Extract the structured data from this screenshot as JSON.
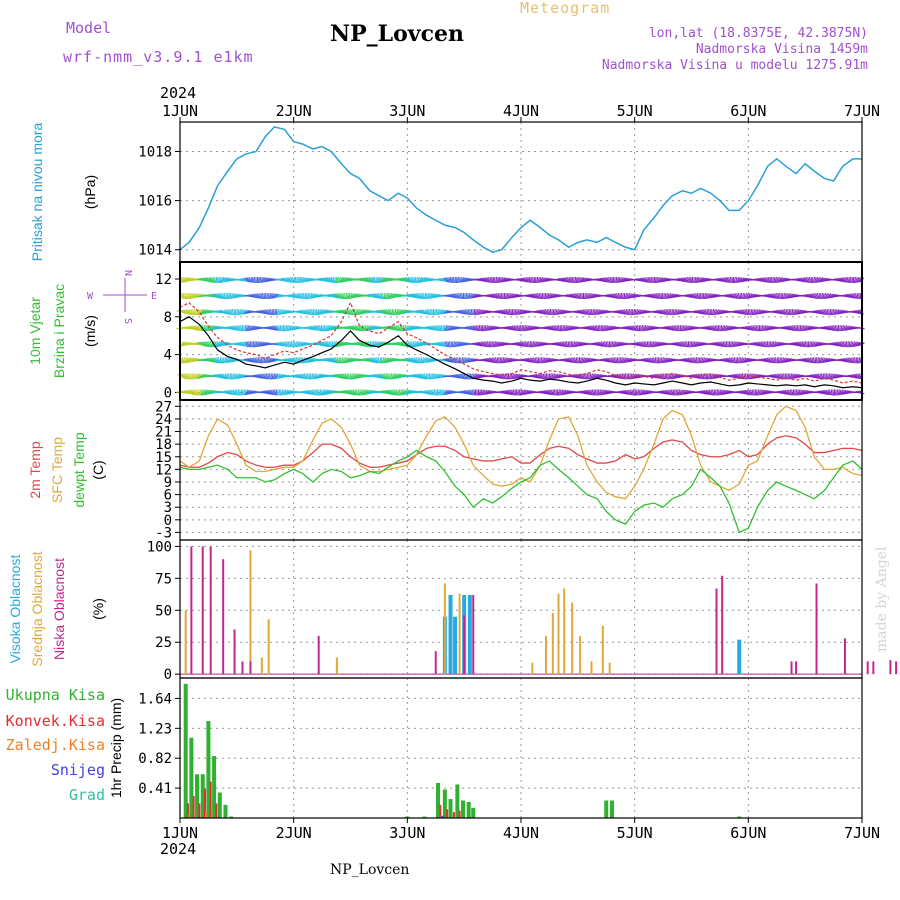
{
  "header": {
    "model_label": "Model",
    "model_value": "wrf-nmm_v3.9.1 e1km",
    "station": "NP_Lovcen",
    "product": "Meteogram",
    "lonlat": "lon,lat (18.8375E, 42.3875N)",
    "elevation": "Nadmorska Visina 1459m",
    "model_elevation": "Nadmorska Visina u modelu 1275.91m",
    "year_top": "2024",
    "year_bottom": "2024",
    "footer_station": "NP_Lovcen",
    "watermark": "made by Angel"
  },
  "x_axis": {
    "ticks": [
      "1JUN",
      "2JUN",
      "3JUN",
      "4JUN",
      "5JUN",
      "6JUN",
      "7JUN"
    ],
    "range_days": [
      0,
      6
    ]
  },
  "colors": {
    "pressure": "#2a9fd8",
    "wind_speed": "#000000",
    "gust": "#e03030",
    "t2m": "#e04848",
    "tsfc": "#e0a838",
    "dewpt": "#30c030",
    "cloud_high": "#2aa8e0",
    "cloud_mid": "#e0a838",
    "cloud_low": "#c02890",
    "precip_total": "#30b030",
    "precip_conv": "#e03030",
    "precip_frz": "#f08020",
    "precip_snow": "#4040e0",
    "precip_grad": "#30c0a0"
  },
  "panels": {
    "pressure": {
      "labels": [
        "Pritisak na nivou mora",
        "(hPa)"
      ],
      "yticks": [
        1014,
        1016,
        1018
      ],
      "ylim": [
        1013.5,
        1019.2
      ]
    },
    "wind": {
      "labels": [
        "10m Vjetar",
        "Brzina i Pravac",
        "(m/s)"
      ],
      "compass": {
        "n": "N",
        "s": "S",
        "w": "W",
        "e": "E"
      },
      "yticks": [
        0,
        4,
        8,
        12
      ],
      "ylim": [
        -0.8,
        13.8
      ]
    },
    "temp": {
      "labels": [
        "2m Temp",
        "SFC Temp",
        "dewpt Temp",
        "(C)"
      ],
      "yticks": [
        -3,
        0,
        3,
        6,
        9,
        12,
        15,
        18,
        21,
        24,
        27
      ],
      "ylim": [
        -4.8,
        28.5
      ]
    },
    "cloud": {
      "labels": [
        "Visoka Oblacnost",
        "Srednja Oblacnost",
        "Niska Oblacnost",
        "(%)"
      ],
      "yticks": [
        0,
        25,
        50,
        75,
        100
      ],
      "ylim": [
        -3,
        105
      ]
    },
    "precip": {
      "labels": [
        "Ukupna Kisa",
        "Konvek.Kisa",
        "Zaledj.Kisa",
        "Snijeg",
        "Grad",
        "1hr Precip (mm)"
      ],
      "yticks": [
        0.41,
        0.82,
        1.23,
        1.64
      ],
      "ylim": [
        0,
        1.92
      ]
    }
  },
  "chart_data": [
    {
      "type": "line",
      "name": "pressure",
      "x": [
        0,
        0.08,
        0.17,
        0.25,
        0.33,
        0.42,
        0.5,
        0.58,
        0.67,
        0.75,
        0.83,
        0.92,
        1.0,
        1.08,
        1.17,
        1.25,
        1.33,
        1.42,
        1.5,
        1.58,
        1.67,
        1.75,
        1.83,
        1.92,
        2.0,
        2.08,
        2.17,
        2.25,
        2.33,
        2.42,
        2.5,
        2.58,
        2.67,
        2.75,
        2.83,
        2.92,
        3.0,
        3.08,
        3.17,
        3.25,
        3.33,
        3.42,
        3.5,
        3.58,
        3.67,
        3.75,
        3.83,
        3.92,
        4.0,
        4.08,
        4.17,
        4.25,
        4.33,
        4.42,
        4.5,
        4.58,
        4.67,
        4.75,
        4.83,
        4.92,
        5.0,
        5.08,
        5.17,
        5.25,
        5.33,
        5.42,
        5.5,
        5.58,
        5.67,
        5.75,
        5.83,
        5.92,
        6.0
      ],
      "values": [
        1014.0,
        1014.3,
        1014.9,
        1015.7,
        1016.6,
        1017.2,
        1017.7,
        1017.9,
        1018.0,
        1018.6,
        1019.0,
        1018.9,
        1018.4,
        1018.3,
        1018.1,
        1018.2,
        1018.0,
        1017.5,
        1017.1,
        1016.9,
        1016.4,
        1016.2,
        1016.0,
        1016.3,
        1016.1,
        1015.7,
        1015.4,
        1015.2,
        1015.0,
        1014.9,
        1014.7,
        1014.4,
        1014.1,
        1013.9,
        1014.0,
        1014.5,
        1014.9,
        1015.2,
        1014.9,
        1014.6,
        1014.4,
        1014.1,
        1014.3,
        1014.4,
        1014.3,
        1014.5,
        1014.3,
        1014.1,
        1014.0,
        1014.8,
        1015.3,
        1015.8,
        1016.2,
        1016.4,
        1016.3,
        1016.5,
        1016.3,
        1016.0,
        1015.6,
        1015.6,
        1016.0,
        1016.6,
        1017.4,
        1017.7,
        1017.4,
        1017.1,
        1017.5,
        1017.2,
        1016.9,
        1016.8,
        1017.4,
        1017.7,
        1017.7
      ]
    },
    {
      "type": "line",
      "name": "wind",
      "x": [
        0,
        0.08,
        0.17,
        0.25,
        0.33,
        0.42,
        0.5,
        0.58,
        0.67,
        0.75,
        0.83,
        0.92,
        1.0,
        1.08,
        1.17,
        1.25,
        1.33,
        1.42,
        1.5,
        1.58,
        1.67,
        1.75,
        1.83,
        1.92,
        2.0,
        2.08,
        2.17,
        2.25,
        2.33,
        2.42,
        2.5,
        2.58,
        2.67,
        2.75,
        2.83,
        2.92,
        3.0,
        3.08,
        3.17,
        3.25,
        3.33,
        3.42,
        3.5,
        3.58,
        3.67,
        3.75,
        3.83,
        3.92,
        4.0,
        4.08,
        4.17,
        4.25,
        4.33,
        4.42,
        4.5,
        4.58,
        4.67,
        4.75,
        4.83,
        4.92,
        5.0,
        5.08,
        5.17,
        5.25,
        5.33,
        5.42,
        5.5,
        5.58,
        5.67,
        5.75,
        5.83,
        5.92,
        6.0
      ],
      "series": [
        {
          "values": [
            7.5,
            8.0,
            7.2,
            6.0,
            4.5,
            3.8,
            3.5,
            3.0,
            2.8,
            2.6,
            2.9,
            3.2,
            3.0,
            3.4,
            3.8,
            4.2,
            4.6,
            5.5,
            6.5,
            5.5,
            5.0,
            4.8,
            5.3,
            6.0,
            5.0,
            4.5,
            4.0,
            3.5,
            3.0,
            2.5,
            2.0,
            1.5,
            1.3,
            1.2,
            1.0,
            1.2,
            1.5,
            1.3,
            1.2,
            1.4,
            1.3,
            1.1,
            1.0,
            1.2,
            1.5,
            1.3,
            1.0,
            0.8,
            1.0,
            0.9,
            0.8,
            1.0,
            1.2,
            1.0,
            0.8,
            1.0,
            1.1,
            0.9,
            0.7,
            0.8,
            1.0,
            0.9,
            0.8,
            0.7,
            0.8,
            0.7,
            0.8,
            0.6,
            0.8,
            0.7,
            0.5,
            0.6,
            0.5
          ]
        },
        {
          "values": [
            9.0,
            9.5,
            8.5,
            7.0,
            5.8,
            5.0,
            4.5,
            4.2,
            4.0,
            3.6,
            4.0,
            4.4,
            4.2,
            4.6,
            5.0,
            5.5,
            6.0,
            7.5,
            9.5,
            7.0,
            6.5,
            6.2,
            6.8,
            7.5,
            6.2,
            5.8,
            5.2,
            4.6,
            4.0,
            3.5,
            3.0,
            2.5,
            2.2,
            2.0,
            1.8,
            2.0,
            2.4,
            2.2,
            2.0,
            2.3,
            2.2,
            1.9,
            1.8,
            2.0,
            2.4,
            2.2,
            1.8,
            1.5,
            1.8,
            1.7,
            1.5,
            1.8,
            2.0,
            1.8,
            1.5,
            1.8,
            1.9,
            1.6,
            1.3,
            1.5,
            1.8,
            1.6,
            1.5,
            1.3,
            1.5,
            1.3,
            1.5,
            1.2,
            1.5,
            1.3,
            1.0,
            1.2,
            1.0
          ]
        }
      ]
    },
    {
      "type": "line",
      "name": "temperature",
      "x": [
        0,
        0.08,
        0.17,
        0.25,
        0.33,
        0.42,
        0.5,
        0.58,
        0.67,
        0.75,
        0.83,
        0.92,
        1.0,
        1.08,
        1.17,
        1.25,
        1.33,
        1.42,
        1.5,
        1.58,
        1.67,
        1.75,
        1.83,
        1.92,
        2.0,
        2.08,
        2.17,
        2.25,
        2.33,
        2.42,
        2.5,
        2.58,
        2.67,
        2.75,
        2.83,
        2.92,
        3.0,
        3.08,
        3.17,
        3.25,
        3.33,
        3.42,
        3.5,
        3.58,
        3.67,
        3.75,
        3.83,
        3.92,
        4.0,
        4.08,
        4.17,
        4.25,
        4.33,
        4.42,
        4.5,
        4.58,
        4.67,
        4.75,
        4.83,
        4.92,
        5.0,
        5.08,
        5.17,
        5.25,
        5.33,
        5.42,
        5.5,
        5.58,
        5.67,
        5.75,
        5.83,
        5.92,
        6.0
      ],
      "series": [
        {
          "values": [
            13,
            12.5,
            12.5,
            13.5,
            15,
            16,
            15.5,
            14,
            13,
            12.5,
            12.5,
            13,
            13,
            14,
            16,
            18,
            18,
            17,
            15,
            13.5,
            12.5,
            12.5,
            13,
            13.5,
            14,
            15.5,
            17,
            17.5,
            17.5,
            16.5,
            15,
            14.5,
            14,
            14,
            14.5,
            15,
            13.5,
            13.5,
            15.5,
            17,
            17.5,
            17,
            15.5,
            14.5,
            13.5,
            13.5,
            14,
            15.5,
            14.5,
            15,
            17,
            18.5,
            19,
            18.5,
            16.5,
            15.5,
            15,
            15,
            15.5,
            16.5,
            15,
            15.5,
            18,
            19.5,
            20,
            19.5,
            18,
            16,
            16,
            16.5,
            17,
            17,
            16.5
          ]
        },
        {
          "values": [
            14,
            12.5,
            14,
            20,
            24,
            22.5,
            18,
            13,
            11.5,
            11.5,
            12,
            12.5,
            12.5,
            14,
            19,
            23,
            24,
            22,
            18,
            13,
            11.5,
            11.5,
            12,
            12.5,
            13,
            15.5,
            20,
            23.5,
            24.5,
            22,
            18,
            13,
            10.5,
            8.5,
            8,
            8.5,
            10,
            9,
            13,
            19,
            24,
            24.5,
            20,
            13,
            9,
            6.5,
            5.5,
            5,
            8,
            12,
            18,
            24,
            26,
            25,
            20,
            13,
            9,
            8,
            7,
            8.5,
            13,
            14,
            20,
            25,
            27,
            26,
            22,
            15,
            12,
            12,
            12.5,
            11,
            10.5
          ]
        },
        {
          "values": [
            12.5,
            12,
            12,
            12.5,
            13,
            12,
            10,
            10,
            10,
            9,
            9.5,
            11,
            12,
            11,
            9,
            11,
            12,
            11.5,
            10,
            10.5,
            11.5,
            11,
            12.5,
            14,
            15,
            16.5,
            15,
            14,
            11.5,
            8,
            6,
            3,
            5,
            4,
            5.5,
            7.5,
            9,
            10,
            13,
            14,
            12,
            10,
            8,
            6,
            5,
            2,
            0,
            -1,
            2,
            3.5,
            4,
            3,
            5,
            6,
            8,
            12,
            10,
            8,
            4,
            -3,
            -2,
            3,
            7,
            9,
            8,
            7,
            6,
            5,
            7,
            10,
            13,
            14,
            12
          ]
        }
      ]
    },
    {
      "type": "bar",
      "name": "cloud cover",
      "series": [
        {
          "x": [
            2.33,
            2.38,
            2.42,
            2.5,
            2.55,
            4.92
          ],
          "values": [
            45,
            62,
            45,
            62,
            62,
            27
          ]
        },
        {
          "x": [
            0.05,
            0.62,
            0.72,
            0.78,
            1.38,
            2.33,
            2.46,
            3.1,
            3.22,
            3.28,
            3.33,
            3.38,
            3.45,
            3.52,
            3.62,
            3.72,
            3.78
          ],
          "values": [
            50,
            97,
            13,
            43,
            13,
            71,
            63,
            9,
            30,
            48,
            63,
            67,
            56,
            30,
            10,
            38,
            9
          ]
        },
        {
          "x": [
            0.1,
            0.2,
            0.27,
            0.38,
            0.48,
            0.55,
            0.62,
            1.22,
            2.25,
            2.5,
            2.58,
            4.72,
            4.77,
            5.38,
            5.42,
            5.6,
            5.85,
            6.05,
            6.1,
            6.25,
            6.3
          ],
          "values": [
            100,
            100,
            100,
            90,
            35,
            10,
            10,
            30,
            18,
            46,
            62,
            67,
            77,
            10,
            10,
            71,
            28,
            10,
            10,
            11,
            10
          ]
        }
      ]
    },
    {
      "type": "bar",
      "name": "precipitation",
      "series": [
        {
          "x": [
            0.05,
            0.1,
            0.15,
            0.2,
            0.25,
            0.3,
            0.35,
            0.4,
            0.45,
            2.0,
            2.15,
            2.27,
            2.33,
            2.38,
            2.44,
            2.49,
            2.54,
            2.58,
            3.75,
            3.8,
            4.92
          ],
          "values": [
            1.84,
            1.1,
            0.6,
            0.6,
            1.33,
            0.85,
            0.35,
            0.18,
            0.02,
            0.02,
            0.02,
            0.48,
            0.39,
            0.26,
            0.46,
            0.24,
            0.22,
            0.14,
            0.24,
            0.24,
            0.02
          ]
        },
        {
          "x": [
            0.07,
            0.12,
            0.17,
            0.22,
            0.27,
            0.32,
            2.29,
            2.35,
            2.41,
            2.46
          ],
          "values": [
            0.2,
            0.3,
            0.2,
            0.4,
            0.5,
            0.2,
            0.18,
            0.12,
            0.08,
            0.1
          ]
        },
        {
          "x": [
            0.08,
            0.23,
            0.28
          ],
          "values": [
            0.05,
            0.08,
            0.05
          ]
        },
        {
          "x": [
            2.31
          ],
          "values": [
            0.03
          ]
        },
        {
          "x": [
            0.14
          ],
          "values": [
            0.02
          ]
        }
      ]
    }
  ]
}
